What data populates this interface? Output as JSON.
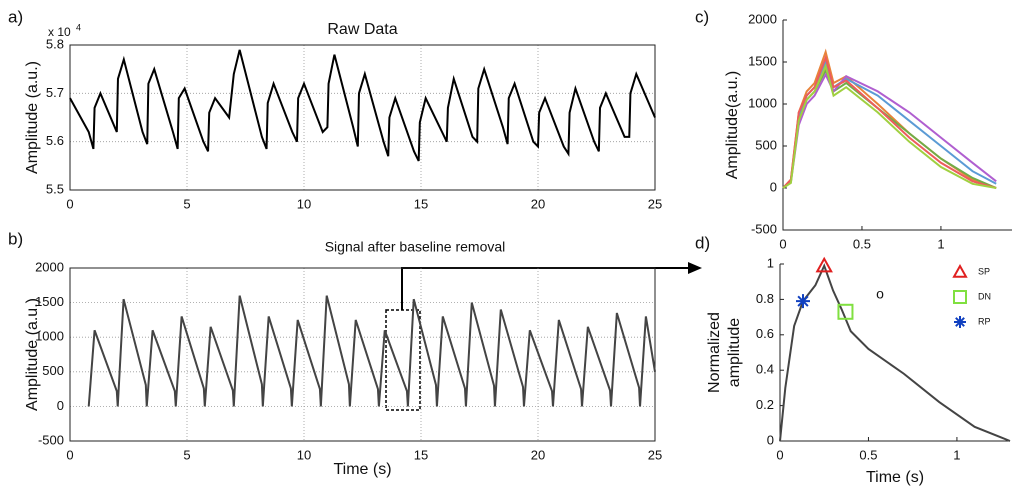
{
  "chart_data": [
    {
      "type": "line",
      "panel_label": "a)",
      "title": "Raw Data",
      "ylabel": "Amplitude (a.u.)",
      "y_multiplier": "x 10",
      "y_multiplier_exp": "4",
      "xlim": [
        0,
        25
      ],
      "xticks": [
        0,
        5,
        10,
        15,
        20,
        25
      ],
      "ylim": [
        5.5,
        5.8
      ],
      "yticks": [
        5.5,
        5.6,
        5.7,
        5.8
      ],
      "grid": true,
      "x": [
        0,
        0.8,
        1.0,
        1.05,
        1.3,
        2.0,
        2.05,
        2.3,
        3.1,
        3.3,
        3.35,
        3.6,
        4.4,
        4.6,
        4.65,
        4.9,
        5.7,
        5.9,
        5.95,
        6.2,
        6.8,
        7.0,
        7.25,
        8.2,
        8.4,
        8.45,
        8.7,
        9.5,
        9.7,
        9.75,
        10.0,
        10.8,
        11.0,
        11.05,
        11.3,
        12.1,
        12.3,
        12.35,
        12.6,
        13.4,
        13.6,
        13.65,
        13.9,
        14.7,
        14.9,
        14.95,
        15.2,
        15.9,
        16.1,
        16.15,
        16.4,
        17.2,
        17.4,
        17.45,
        17.7,
        18.5,
        18.7,
        18.75,
        19.0,
        19.8,
        20.0,
        20.05,
        20.3,
        21.1,
        21.3,
        21.35,
        21.6,
        22.4,
        22.6,
        22.65,
        22.9,
        23.7,
        23.9,
        23.95,
        24.2,
        25
      ],
      "series": [
        {
          "color": "#000000",
          "values": [
            5.69,
            5.62,
            5.585,
            5.67,
            5.7,
            5.62,
            5.73,
            5.77,
            5.62,
            5.595,
            5.72,
            5.75,
            5.62,
            5.585,
            5.69,
            5.71,
            5.6,
            5.58,
            5.66,
            5.69,
            5.65,
            5.74,
            5.79,
            5.61,
            5.585,
            5.68,
            5.72,
            5.62,
            5.6,
            5.69,
            5.72,
            5.62,
            5.63,
            5.72,
            5.78,
            5.63,
            5.59,
            5.7,
            5.74,
            5.6,
            5.57,
            5.65,
            5.69,
            5.58,
            5.56,
            5.64,
            5.69,
            5.62,
            5.6,
            5.67,
            5.73,
            5.61,
            5.6,
            5.71,
            5.75,
            5.63,
            5.595,
            5.69,
            5.72,
            5.6,
            5.59,
            5.66,
            5.69,
            5.59,
            5.575,
            5.66,
            5.71,
            5.6,
            5.58,
            5.67,
            5.7,
            5.61,
            5.61,
            5.7,
            5.74,
            5.65
          ]
        }
      ]
    },
    {
      "type": "line",
      "panel_label": "b)",
      "annotation": "Signal after baseline removal",
      "ylabel": "Amplitude (a.u.)",
      "xlabel": "Time (s)",
      "xlim": [
        0,
        25
      ],
      "xticks": [
        0,
        5,
        10,
        15,
        20,
        25
      ],
      "ylim": [
        -500,
        2000
      ],
      "yticks": [
        -500,
        0,
        500,
        1000,
        1500,
        2000
      ],
      "grid": true,
      "x": [
        0.8,
        1.05,
        2.0,
        2.04,
        2.29,
        3.24,
        3.28,
        3.53,
        4.48,
        4.52,
        4.77,
        5.72,
        5.76,
        6.01,
        6.96,
        7.0,
        7.25,
        8.2,
        8.24,
        8.49,
        9.44,
        9.48,
        9.73,
        10.68,
        10.72,
        10.97,
        11.92,
        11.96,
        12.21,
        13.16,
        13.2,
        13.45,
        14.4,
        14.44,
        14.69,
        15.64,
        15.68,
        15.93,
        16.88,
        16.92,
        17.17,
        18.12,
        18.16,
        18.41,
        19.36,
        19.4,
        19.65,
        20.6,
        20.64,
        20.89,
        21.84,
        21.88,
        22.13,
        23.08,
        23.12,
        23.37,
        24.32,
        24.36,
        24.61,
        25
      ],
      "series": [
        {
          "color": "#444444",
          "values": [
            0,
            1100,
            220,
            0,
            1550,
            310,
            0,
            1100,
            220,
            0,
            1300,
            260,
            0,
            1150,
            230,
            0,
            1600,
            320,
            0,
            1300,
            260,
            0,
            1250,
            250,
            0,
            1600,
            320,
            0,
            1250,
            250,
            0,
            1100,
            220,
            0,
            1550,
            310,
            0,
            1300,
            260,
            0,
            1500,
            300,
            0,
            1400,
            280,
            0,
            1100,
            220,
            0,
            1250,
            250,
            0,
            1150,
            230,
            0,
            1350,
            270,
            0,
            1300,
            500
          ]
        }
      ]
    },
    {
      "type": "line",
      "panel_label": "c)",
      "ylabel": "Amplitude(a.u.)",
      "xlim": [
        0,
        1.45
      ],
      "xticks": [
        0,
        0.5,
        1
      ],
      "ylim": [
        -500,
        2000
      ],
      "yticks": [
        -500,
        0,
        500,
        1000,
        1500,
        2000
      ],
      "grid": false,
      "x": [
        0,
        0.05,
        0.1,
        0.15,
        0.2,
        0.27,
        0.32,
        0.4,
        0.6,
        0.8,
        1.0,
        1.2,
        1.35
      ],
      "series": [
        {
          "color": "#e8833a",
          "values": [
            0,
            100,
            900,
            1150,
            1250,
            1620,
            1250,
            1330,
            1000,
            650,
            350,
            100,
            0
          ]
        },
        {
          "color": "#5b9bd5",
          "values": [
            0,
            80,
            850,
            1100,
            1200,
            1500,
            1200,
            1300,
            1100,
            800,
            500,
            200,
            50
          ]
        },
        {
          "color": "#70ad47",
          "values": [
            0,
            90,
            800,
            1050,
            1150,
            1400,
            1150,
            1250,
            950,
            650,
            350,
            120,
            0
          ]
        },
        {
          "color": "#b05fd0",
          "values": [
            0,
            70,
            750,
            1000,
            1100,
            1350,
            1150,
            1330,
            1150,
            900,
            600,
            300,
            80
          ]
        },
        {
          "color": "#ed5c5c",
          "values": [
            0,
            100,
            900,
            1100,
            1200,
            1550,
            1200,
            1280,
            950,
            600,
            300,
            80,
            0
          ]
        },
        {
          "color": "#a0d040",
          "values": [
            0,
            60,
            800,
            1050,
            1150,
            1450,
            1100,
            1200,
            900,
            550,
            250,
            50,
            0
          ]
        }
      ]
    },
    {
      "type": "line",
      "panel_label": "d)",
      "ylabel": [
        "Normalized",
        "amplitude"
      ],
      "xlabel": "Time (s)",
      "annotation": "o",
      "xlim": [
        0,
        1.3
      ],
      "xticks": [
        0,
        0.5,
        1
      ],
      "ylim": [
        0,
        1
      ],
      "yticks": [
        0,
        0.2,
        0.4,
        0.6,
        0.8,
        1
      ],
      "grid": false,
      "x": [
        0,
        0.03,
        0.08,
        0.13,
        0.2,
        0.25,
        0.3,
        0.35,
        0.4,
        0.5,
        0.7,
        0.9,
        1.1,
        1.25,
        1.3
      ],
      "series": [
        {
          "color": "#444444",
          "values": [
            0,
            0.3,
            0.65,
            0.79,
            0.88,
            0.99,
            0.85,
            0.74,
            0.62,
            0.52,
            0.38,
            0.22,
            0.08,
            0.02,
            0
          ]
        }
      ],
      "points": [
        {
          "name": "SP",
          "x": 0.25,
          "y": 0.99,
          "color": "#e02020",
          "marker": "triangle"
        },
        {
          "name": "DN",
          "x": 0.37,
          "y": 0.73,
          "color": "#80e040",
          "marker": "square"
        },
        {
          "name": "RP",
          "x": 0.13,
          "y": 0.79,
          "color": "#1040c0",
          "marker": "star"
        }
      ]
    }
  ]
}
